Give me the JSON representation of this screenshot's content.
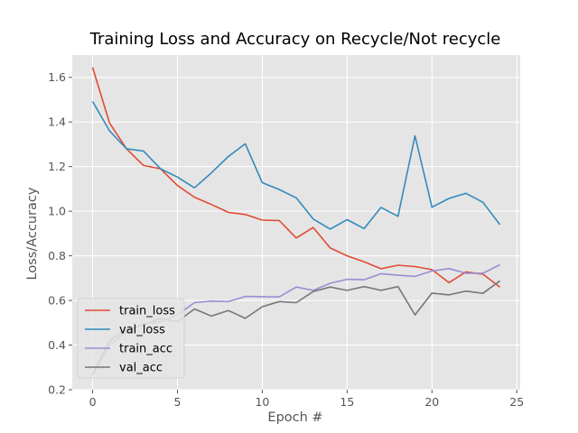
{
  "chart_data": {
    "type": "line",
    "title": "Training Loss and Accuracy on Recycle/Not recycle",
    "xlabel": "Epoch #",
    "ylabel": "Loss/Accuracy",
    "xlim": [
      -1.2,
      25.2
    ],
    "ylim": [
      0.2,
      1.7
    ],
    "xticks": [
      0,
      5,
      10,
      15,
      20,
      25
    ],
    "yticks": [
      0.2,
      0.4,
      0.6,
      0.8,
      1.0,
      1.2,
      1.4,
      1.6
    ],
    "ytick_labels": [
      "0.2",
      "0.4",
      "0.6",
      "0.8",
      "1.0",
      "1.2",
      "1.4",
      "1.6"
    ],
    "grid": true,
    "legend_position": "lower-left",
    "x": [
      0,
      1,
      2,
      3,
      4,
      5,
      6,
      7,
      8,
      9,
      10,
      11,
      12,
      13,
      14,
      15,
      16,
      17,
      18,
      19,
      20,
      21,
      22,
      23,
      24
    ],
    "series": [
      {
        "name": "train_loss",
        "color": "#E24A33",
        "values": [
          1.645,
          1.395,
          1.28,
          1.205,
          1.19,
          1.115,
          1.063,
          1.03,
          0.995,
          0.985,
          0.96,
          0.958,
          0.88,
          0.927,
          0.835,
          0.8,
          0.773,
          0.742,
          0.758,
          0.752,
          0.738,
          0.68,
          0.728,
          0.718,
          0.66
        ]
      },
      {
        "name": "val_loss",
        "color": "#348ABD",
        "values": [
          1.492,
          1.36,
          1.28,
          1.27,
          1.19,
          1.153,
          1.105,
          1.172,
          1.245,
          1.302,
          1.128,
          1.097,
          1.06,
          0.965,
          0.92,
          0.962,
          0.922,
          1.017,
          0.977,
          1.338,
          1.018,
          1.057,
          1.08,
          1.04,
          0.94
        ]
      },
      {
        "name": "train_acc",
        "color": "#988ED5",
        "values": [
          0.27,
          0.4,
          0.46,
          0.495,
          0.505,
          0.535,
          0.59,
          0.597,
          0.595,
          0.618,
          0.617,
          0.616,
          0.66,
          0.645,
          0.677,
          0.695,
          0.693,
          0.72,
          0.713,
          0.708,
          0.732,
          0.743,
          0.722,
          0.722,
          0.76
        ]
      },
      {
        "name": "val_acc",
        "color": "#777777",
        "values": [
          0.265,
          0.42,
          0.47,
          0.49,
          0.52,
          0.505,
          0.562,
          0.53,
          0.555,
          0.52,
          0.572,
          0.595,
          0.59,
          0.64,
          0.66,
          0.645,
          0.662,
          0.645,
          0.662,
          0.535,
          0.633,
          0.625,
          0.642,
          0.632,
          0.688
        ]
      }
    ]
  },
  "colors": {
    "plot_background": "#E5E5E5",
    "grid": "#FFFFFF",
    "legend_background": "#E5E5E5"
  }
}
